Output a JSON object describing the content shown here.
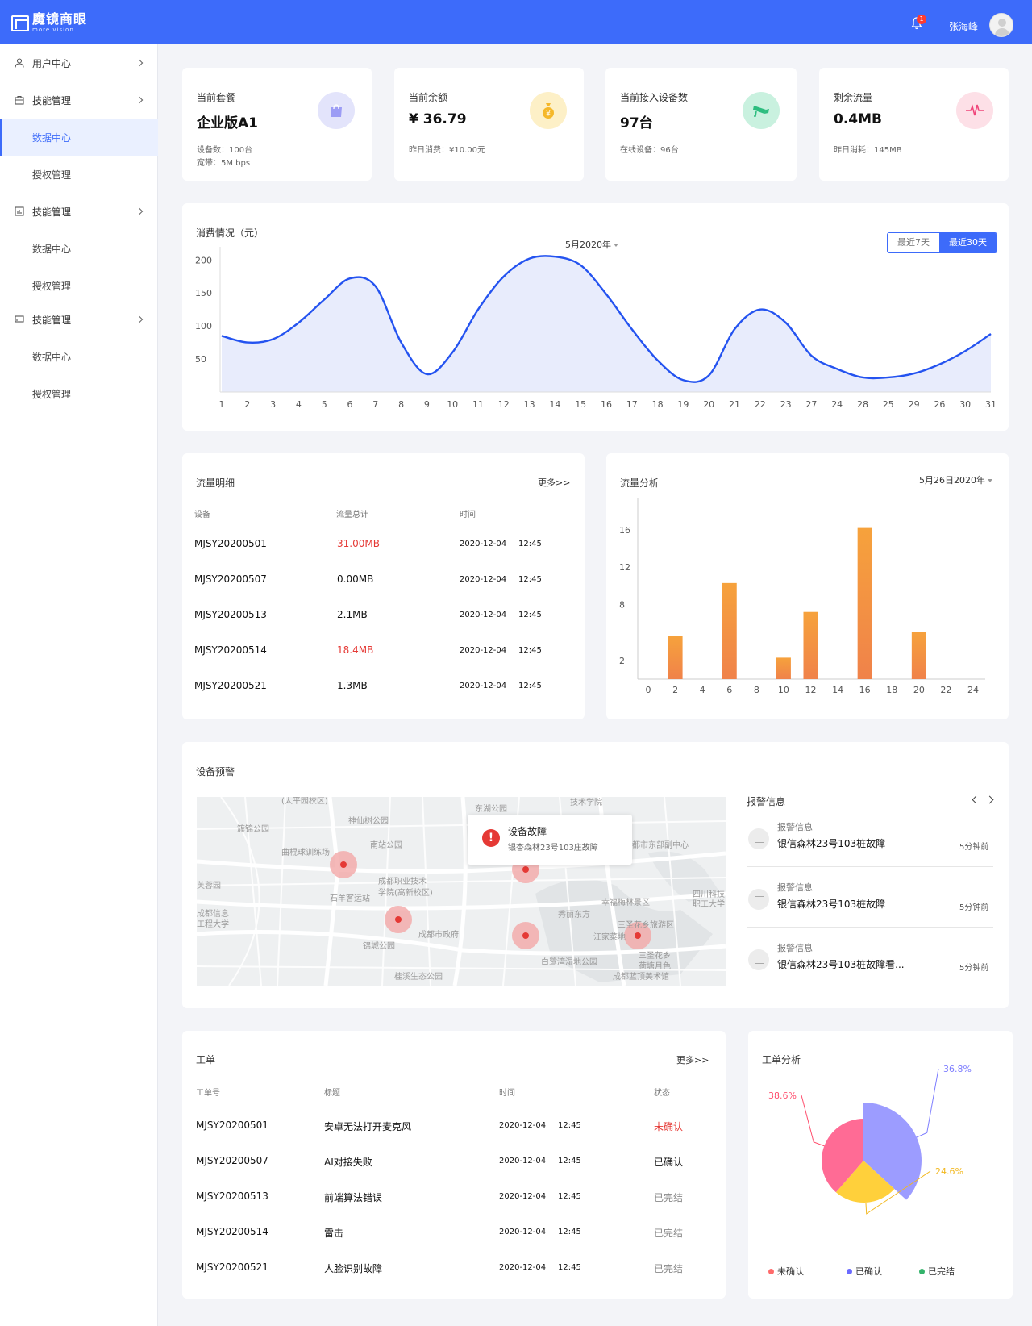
{
  "header": {
    "logo_cn": "魔镜商眼",
    "logo_en": "more vision",
    "notify_count": "1",
    "username": "张海峰"
  },
  "sidebar": {
    "items": [
      {
        "label": "用户中心",
        "icon": "user-icon"
      },
      {
        "label": "技能管理",
        "icon": "briefcase-icon"
      },
      {
        "label": "数据中心"
      },
      {
        "label": "授权管理"
      },
      {
        "label": "技能管理",
        "icon": "bar-chart-icon"
      },
      {
        "label": "数据中心"
      },
      {
        "label": "授权管理"
      },
      {
        "label": "技能管理",
        "icon": "monitor-icon"
      },
      {
        "label": "数据中心"
      },
      {
        "label": "授权管理"
      }
    ]
  },
  "stats": [
    {
      "label": "当前套餐",
      "value": "企业版A1",
      "sub1": "设备数：100台",
      "sub2": "宽带：5M bps",
      "icon": "shopping-bag-icon",
      "color": "#e3e4fb"
    },
    {
      "label": "当前余额",
      "value": "¥ 36.79",
      "sub1": "昨日消费：¥10.00元",
      "icon": "money-bag-icon",
      "color": "#fdf0c7"
    },
    {
      "label": "当前接入设备数",
      "value": "97台",
      "sub1": "在线设备：96台",
      "icon": "camera-icon",
      "color": "#c9f1df"
    },
    {
      "label": "剩余流量",
      "value": "0.4MB",
      "sub1": "昨日消耗：145MB",
      "icon": "pulse-icon",
      "color": "#fde0e7"
    }
  ],
  "consumption": {
    "title": "消费情况（元）",
    "month": "5月2020年",
    "range_7": "最近7天",
    "range_30": "最近30天"
  },
  "chart_data": [
    {
      "type": "area",
      "x": [
        "1",
        "2",
        "3",
        "4",
        "5",
        "6",
        "7",
        "8",
        "9",
        "10",
        "11",
        "12",
        "13",
        "14",
        "15",
        "16",
        "17",
        "18",
        "19",
        "20",
        "21",
        "22",
        "23",
        "27",
        "24",
        "28",
        "25",
        "29",
        "26",
        "30",
        "31"
      ],
      "values": [
        85,
        75,
        80,
        105,
        140,
        172,
        160,
        75,
        27,
        60,
        125,
        175,
        202,
        205,
        192,
        148,
        95,
        48,
        18,
        25,
        95,
        125,
        105,
        55,
        35,
        22,
        22,
        28,
        42,
        62,
        88
      ],
      "yticks": [
        50,
        100,
        150,
        200
      ],
      "ylim": [
        0,
        215
      ]
    },
    {
      "type": "bar",
      "categories": [
        "0",
        "2",
        "4",
        "6",
        "8",
        "10",
        "12",
        "14",
        "16",
        "18",
        "20",
        "22",
        "24"
      ],
      "x": [
        2,
        6,
        10,
        12,
        16,
        20
      ],
      "values": [
        4.6,
        10.3,
        2.3,
        7.2,
        16.2,
        5.1
      ],
      "yticks": [
        2,
        8,
        12,
        16
      ],
      "ylim": [
        0,
        18.5
      ]
    },
    {
      "type": "pie",
      "categories": [
        "未确认",
        "已确认",
        "已完结"
      ],
      "values": [
        38.6,
        36.8,
        24.6
      ],
      "labels": [
        "38.6%",
        "36.8%",
        "24.6%"
      ],
      "colors": [
        "#ff6b95",
        "#9c9cff",
        "#ffd03b"
      ]
    }
  ],
  "traffic": {
    "title": "流量明细",
    "more": "更多>>",
    "headers": [
      "设备",
      "流量总计",
      "时间"
    ],
    "rows": [
      {
        "device": "MJSY20200501",
        "total": "31.00MB",
        "date": "2020-12-04",
        "time": "12:45",
        "warn": true
      },
      {
        "device": "MJSY20200507",
        "total": "0.00MB",
        "date": "2020-12-04",
        "time": "12:45",
        "warn": false
      },
      {
        "device": "MJSY20200513",
        "total": "2.1MB",
        "date": "2020-12-04",
        "time": "12:45",
        "warn": false
      },
      {
        "device": "MJSY20200514",
        "total": "18.4MB",
        "date": "2020-12-04",
        "time": "12:45",
        "warn": true
      },
      {
        "device": "MJSY20200521",
        "total": "1.3MB",
        "date": "2020-12-04",
        "time": "12:45",
        "warn": false
      }
    ]
  },
  "analysis": {
    "title": "流量分析",
    "date": "5月26日2020年"
  },
  "warning": {
    "title": "设备预警",
    "popup_title": "设备故障",
    "popup_desc": "银杏森林23号103庄故障",
    "alarm_title": "报警信息",
    "map_labels": [
      "(太平园校区)",
      "东湖公园",
      "技术学院",
      "神仙树公园",
      "簇锦公园",
      "南站公园",
      "曲棍球训练场",
      "都市东部副中心",
      "成都职业技术",
      "学院(高新校区)",
      "石羊客运站",
      "芙蓉园",
      "成都信息",
      "工程大学",
      "秀丽东方",
      "幸福梅林景区",
      "四川科技",
      "职工大学",
      "三圣花乡旅游区",
      "成都市政府",
      "锦城公园",
      "江家菜地",
      "白鹭湾湿地公园",
      "三圣花乡",
      "荷塘月色",
      "桂溪生态公园",
      "成都蓝顶美术馆"
    ],
    "alarms": [
      {
        "title": "报警信息",
        "desc": "银信森林23号103桩故障",
        "time": "5分钟前"
      },
      {
        "title": "报警信息",
        "desc": "银信森林23号103桩故障",
        "time": "5分钟前"
      },
      {
        "title": "报警信息",
        "desc": "银信森林23号103桩故障看...",
        "time": "5分钟前"
      }
    ]
  },
  "orders": {
    "title": "工单",
    "more": "更多>>",
    "headers": [
      "工单号",
      "标题",
      "时间",
      "状态"
    ],
    "rows": [
      {
        "id": "MJSY20200501",
        "title": "安卓无法打开麦克风",
        "date": "2020-12-04",
        "time": "12:45",
        "status": "未确认",
        "kind": "red"
      },
      {
        "id": "MJSY20200507",
        "title": "AI对接失败",
        "date": "2020-12-04",
        "time": "12:45",
        "status": "已确认",
        "kind": "dark"
      },
      {
        "id": "MJSY20200513",
        "title": "前端算法错误",
        "date": "2020-12-04",
        "time": "12:45",
        "status": "已完结",
        "kind": "grey"
      },
      {
        "id": "MJSY20200514",
        "title": "雷击",
        "date": "2020-12-04",
        "time": "12:45",
        "status": "已完结",
        "kind": "grey"
      },
      {
        "id": "MJSY20200521",
        "title": "人脸识别故障",
        "date": "2020-12-04",
        "time": "12:45",
        "status": "已完结",
        "kind": "grey"
      }
    ]
  },
  "order_analysis": {
    "title": "工单分析",
    "legend": [
      {
        "label": "未确认",
        "color": "#ff6b6b"
      },
      {
        "label": "已确认",
        "color": "#6b6bff"
      },
      {
        "label": "已完结",
        "color": "#34b36b"
      }
    ]
  }
}
